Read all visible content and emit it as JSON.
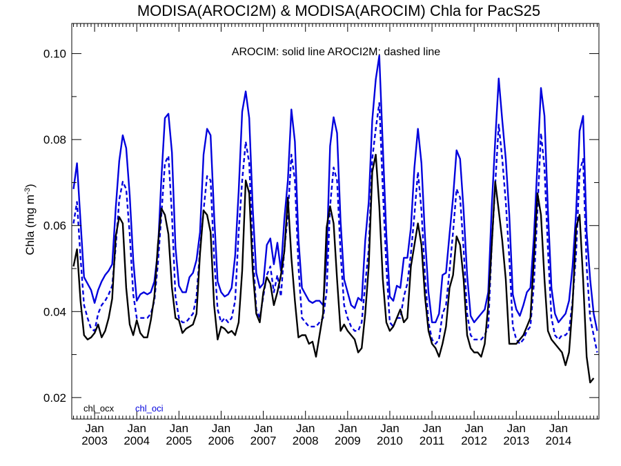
{
  "chart_data": {
    "type": "line",
    "title": "MODISA(AROCI2M) & MODISA(AROCIM)  Chla for PacS25",
    "annotation": "AROCIM: solid line   AROCI2M: dashed line",
    "ylabel": "Chla (mg m",
    "ylabel_sup": "-3",
    "ylabel_close": ")",
    "ylim": [
      0.015,
      0.107
    ],
    "yticks": [
      0.02,
      0.04,
      0.06,
      0.08,
      0.1
    ],
    "ytick_labels": [
      "0.02",
      "0.04",
      "0.06",
      "0.08",
      "0.10"
    ],
    "x_start": "2002-07",
    "x_end": "2014-12",
    "xtick_top_labels": [
      "Jan",
      "Jan",
      "Jan",
      "Jan",
      "Jan",
      "Jan",
      "Jan",
      "Jan",
      "Jan",
      "Jan",
      "Jan",
      "Jan"
    ],
    "xtick_bottom_labels": [
      "2003",
      "2004",
      "2005",
      "2006",
      "2007",
      "2008",
      "2009",
      "2010",
      "2011",
      "2012",
      "2013",
      "2014"
    ],
    "x_months": [
      "2002-07",
      "2002-08",
      "2002-09",
      "2002-10",
      "2002-11",
      "2002-12",
      "2003-01",
      "2003-02",
      "2003-03",
      "2003-04",
      "2003-05",
      "2003-06",
      "2003-07",
      "2003-08",
      "2003-09",
      "2003-10",
      "2003-11",
      "2003-12",
      "2004-01",
      "2004-02",
      "2004-03",
      "2004-04",
      "2004-05",
      "2004-06",
      "2004-07",
      "2004-08",
      "2004-09",
      "2004-10",
      "2004-11",
      "2004-12",
      "2005-01",
      "2005-02",
      "2005-03",
      "2005-04",
      "2005-05",
      "2005-06",
      "2005-07",
      "2005-08",
      "2005-09",
      "2005-10",
      "2005-11",
      "2005-12",
      "2006-01",
      "2006-02",
      "2006-03",
      "2006-04",
      "2006-05",
      "2006-06",
      "2006-07",
      "2006-08",
      "2006-09",
      "2006-10",
      "2006-11",
      "2006-12",
      "2007-01",
      "2007-02",
      "2007-03",
      "2007-04",
      "2007-05",
      "2007-06",
      "2007-07",
      "2007-08",
      "2007-09",
      "2007-10",
      "2007-11",
      "2007-12",
      "2008-01",
      "2008-02",
      "2008-03",
      "2008-04",
      "2008-05",
      "2008-06",
      "2008-07",
      "2008-08",
      "2008-09",
      "2008-10",
      "2008-11",
      "2008-12",
      "2009-01",
      "2009-02",
      "2009-03",
      "2009-04",
      "2009-05",
      "2009-06",
      "2009-07",
      "2009-08",
      "2009-09",
      "2009-10",
      "2009-11",
      "2009-12",
      "2010-01",
      "2010-02",
      "2010-03",
      "2010-04",
      "2010-05",
      "2010-06",
      "2010-07",
      "2010-08",
      "2010-09",
      "2010-10",
      "2010-11",
      "2010-12",
      "2011-01",
      "2011-02",
      "2011-03",
      "2011-04",
      "2011-05",
      "2011-06",
      "2011-07",
      "2011-08",
      "2011-09",
      "2011-10",
      "2011-11",
      "2011-12",
      "2012-01",
      "2012-02",
      "2012-03",
      "2012-04",
      "2012-05",
      "2012-06",
      "2012-07",
      "2012-08",
      "2012-09",
      "2012-10",
      "2012-11",
      "2012-12",
      "2013-01",
      "2013-02",
      "2013-03",
      "2013-04",
      "2013-05",
      "2013-06",
      "2013-07",
      "2013-08",
      "2013-09",
      "2013-10",
      "2013-11",
      "2013-12",
      "2014-01",
      "2014-02",
      "2014-03",
      "2014-04",
      "2014-05",
      "2014-06",
      "2014-07",
      "2014-08",
      "2014-09",
      "2014-10",
      "2014-11",
      "2014-12"
    ],
    "series": [
      {
        "name": "chl_oci",
        "style": "solid",
        "color": "#0000dd",
        "values": [
          0.0685,
          0.0745,
          0.061,
          0.048,
          0.0465,
          0.045,
          0.042,
          0.045,
          0.047,
          0.0485,
          0.0495,
          0.051,
          0.064,
          0.075,
          0.081,
          0.078,
          0.067,
          0.052,
          0.0425,
          0.044,
          0.0445,
          0.044,
          0.0445,
          0.047,
          0.054,
          0.071,
          0.085,
          0.086,
          0.077,
          0.055,
          0.046,
          0.0445,
          0.0445,
          0.048,
          0.049,
          0.052,
          0.0585,
          0.0765,
          0.0825,
          0.081,
          0.0625,
          0.047,
          0.0445,
          0.0435,
          0.044,
          0.0455,
          0.053,
          0.068,
          0.0865,
          0.0912,
          0.085,
          0.064,
          0.049,
          0.0455,
          0.0465,
          0.0555,
          0.057,
          0.051,
          0.056,
          0.0495,
          0.0615,
          0.0705,
          0.087,
          0.0795,
          0.057,
          0.0455,
          0.044,
          0.0425,
          0.042,
          0.0425,
          0.0425,
          0.0415,
          0.0525,
          0.0785,
          0.0852,
          0.0815,
          0.061,
          0.0475,
          0.0445,
          0.0415,
          0.0408,
          0.0432,
          0.0425,
          0.0565,
          0.0655,
          0.0845,
          0.094,
          0.0995,
          0.0785,
          0.058,
          0.0435,
          0.0425,
          0.046,
          0.0455,
          0.0525,
          0.0525,
          0.0595,
          0.0735,
          0.0825,
          0.0745,
          0.0575,
          0.0445,
          0.0375,
          0.0375,
          0.0395,
          0.0485,
          0.049,
          0.058,
          0.0665,
          0.0775,
          0.0755,
          0.0635,
          0.0485,
          0.039,
          0.0375,
          0.0385,
          0.0395,
          0.0405,
          0.0445,
          0.0645,
          0.0798,
          0.0942,
          0.0845,
          0.0755,
          0.0625,
          0.044,
          0.0405,
          0.039,
          0.0415,
          0.0445,
          0.0455,
          0.0575,
          0.0745,
          0.092,
          0.0855,
          0.0635,
          0.0455,
          0.0395,
          0.0375,
          0.0385,
          0.0395,
          0.0425,
          0.0505,
          0.063,
          0.082,
          0.0855,
          0.0585,
          0.0475,
          0.0395,
          0.0355
        ]
      },
      {
        "name": "AROCI2M",
        "style": "dashed",
        "color": "#0000dd",
        "values": [
          0.0605,
          0.0655,
          0.0525,
          0.0415,
          0.0385,
          0.036,
          0.0355,
          0.0395,
          0.0415,
          0.0425,
          0.044,
          0.046,
          0.055,
          0.066,
          0.0702,
          0.0685,
          0.058,
          0.044,
          0.0385,
          0.0385,
          0.0385,
          0.0385,
          0.0395,
          0.0425,
          0.051,
          0.0625,
          0.0745,
          0.0762,
          0.0625,
          0.0435,
          0.0385,
          0.0375,
          0.0375,
          0.0385,
          0.0395,
          0.0435,
          0.0545,
          0.0635,
          0.0715,
          0.0705,
          0.0525,
          0.0405,
          0.0375,
          0.0385,
          0.0375,
          0.0385,
          0.0425,
          0.0585,
          0.0705,
          0.0795,
          0.0745,
          0.0545,
          0.0405,
          0.0385,
          0.0435,
          0.0485,
          0.0505,
          0.0445,
          0.0485,
          0.0435,
          0.0545,
          0.0625,
          0.0765,
          0.0705,
          0.0505,
          0.0385,
          0.0375,
          0.0365,
          0.0365,
          0.0365,
          0.0375,
          0.0385,
          0.0445,
          0.0645,
          0.0735,
          0.0705,
          0.0535,
          0.0415,
          0.0385,
          0.0365,
          0.0355,
          0.0355,
          0.0375,
          0.0465,
          0.0545,
          0.0755,
          0.0825,
          0.0885,
          0.0685,
          0.0505,
          0.0375,
          0.0365,
          0.0385,
          0.0385,
          0.0435,
          0.0465,
          0.0535,
          0.0625,
          0.0725,
          0.0635,
          0.0485,
          0.0375,
          0.0335,
          0.0325,
          0.0335,
          0.0395,
          0.0415,
          0.0495,
          0.0585,
          0.0685,
          0.0665,
          0.0545,
          0.0395,
          0.0345,
          0.0335,
          0.0335,
          0.0335,
          0.0345,
          0.0365,
          0.0555,
          0.0695,
          0.0835,
          0.0755,
          0.0655,
          0.0525,
          0.0365,
          0.0335,
          0.0325,
          0.0335,
          0.0355,
          0.0365,
          0.0465,
          0.0635,
          0.0815,
          0.0735,
          0.0545,
          0.0385,
          0.0345,
          0.0335,
          0.0345,
          0.0345,
          0.0355,
          0.0425,
          0.0535,
          0.0725,
          0.0755,
          0.0505,
          0.0385,
          0.0345,
          0.0305
        ]
      },
      {
        "name": "chl_ocx",
        "style": "solid",
        "color": "#000000",
        "values": [
          0.0505,
          0.0545,
          0.0425,
          0.0345,
          0.0335,
          0.034,
          0.035,
          0.037,
          0.034,
          0.0355,
          0.0385,
          0.043,
          0.0575,
          0.062,
          0.0605,
          0.0455,
          0.037,
          0.0345,
          0.038,
          0.035,
          0.034,
          0.034,
          0.038,
          0.0435,
          0.0555,
          0.064,
          0.0625,
          0.058,
          0.0455,
          0.0385,
          0.038,
          0.035,
          0.036,
          0.0365,
          0.037,
          0.0395,
          0.0535,
          0.0635,
          0.0625,
          0.0585,
          0.0415,
          0.0335,
          0.0365,
          0.036,
          0.035,
          0.0355,
          0.0345,
          0.0375,
          0.0495,
          0.0705,
          0.0675,
          0.0495,
          0.0395,
          0.0375,
          0.0445,
          0.048,
          0.0465,
          0.0415,
          0.0445,
          0.0485,
          0.054,
          0.0665,
          0.0525,
          0.0425,
          0.034,
          0.0345,
          0.0345,
          0.0325,
          0.033,
          0.0295,
          0.0345,
          0.0395,
          0.0595,
          0.0645,
          0.0605,
          0.0475,
          0.0355,
          0.037,
          0.0355,
          0.0345,
          0.0335,
          0.0305,
          0.0315,
          0.0395,
          0.0505,
          0.0725,
          0.0765,
          0.0645,
          0.0475,
          0.0375,
          0.0355,
          0.0365,
          0.0385,
          0.0405,
          0.0375,
          0.0385,
          0.0505,
          0.0555,
          0.0605,
          0.0555,
          0.0435,
          0.0355,
          0.0325,
          0.0315,
          0.0295,
          0.0325,
          0.0365,
          0.0455,
          0.0485,
          0.0575,
          0.0555,
          0.0475,
          0.0345,
          0.0315,
          0.0305,
          0.0305,
          0.0295,
          0.0325,
          0.0415,
          0.0555,
          0.0702,
          0.0635,
          0.0565,
          0.0475,
          0.0325,
          0.0325,
          0.0325,
          0.0335,
          0.0345,
          0.0365,
          0.0385,
          0.0525,
          0.0675,
          0.0625,
          0.0475,
          0.0355,
          0.0335,
          0.0325,
          0.0315,
          0.0305,
          0.0275,
          0.0305,
          0.0415,
          0.0595,
          0.0625,
          0.0475,
          0.0295,
          0.0235,
          0.0245
        ]
      }
    ],
    "legend": [
      {
        "label": "chl_ocx",
        "color": "#000000"
      },
      {
        "label": "chl_oci",
        "color": "#0000dd"
      }
    ]
  }
}
